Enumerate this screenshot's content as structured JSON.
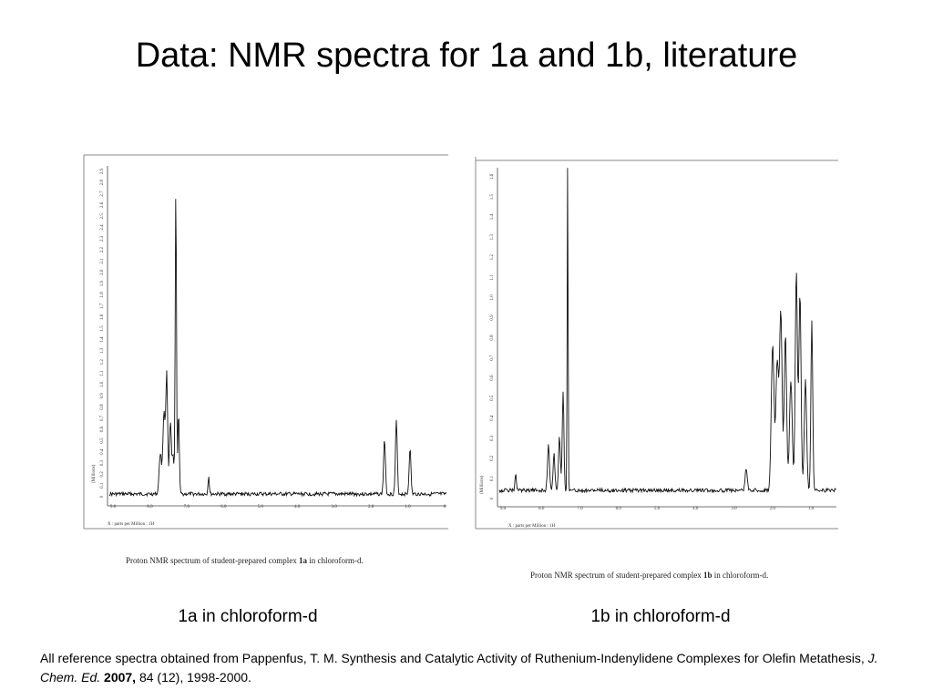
{
  "slide": {
    "title": "Data: NMR spectra for 1a and 1b, literature"
  },
  "spectra": [
    {
      "id": "1a",
      "figure_caption_prefix": "Proton NMR spectrum of student-prepared complex ",
      "figure_caption_compound": "1a",
      "figure_caption_suffix": " in chloroform-d.",
      "x_axis_title": "X : parts per Million : 1H",
      "y_axis_title": "(Millions)",
      "x_ticks": [
        "9.0",
        "8.0",
        "7.0",
        "6.0",
        "5.0",
        "4.0",
        "3.0",
        "2.0",
        "1.0",
        "0"
      ],
      "y_ticks": [
        "0",
        "0.1",
        "0.2",
        "0.3",
        "0.4",
        "0.5",
        "0.6",
        "0.7",
        "0.8",
        "0.9",
        "1.0",
        "1.1",
        "1.2",
        "1.3",
        "1.4",
        "1.5",
        "1.6",
        "1.7",
        "1.8",
        "1.9",
        "2.0",
        "2.1",
        "2.2",
        "2.3",
        "2.4",
        "2.5",
        "2.6",
        "2.7",
        "2.8",
        "2.9"
      ],
      "sub_caption": "1a in chloroform-d"
    },
    {
      "id": "1b",
      "figure_caption_prefix": "Proton NMR spectrum of student-prepared complex ",
      "figure_caption_compound": "1b",
      "figure_caption_suffix": " in chloroform-d.",
      "x_axis_title": "X : parts per Million : 1H",
      "y_axis_title": "(Millions)",
      "x_ticks": [
        "9.0",
        "8.0",
        "7.0",
        "6.0",
        "5.0",
        "4.0",
        "3.0",
        "2.0",
        "1.0"
      ],
      "y_ticks": [
        "0",
        "0.1",
        "0.2",
        "0.3",
        "0.4",
        "0.5",
        "0.6",
        "0.7",
        "0.8",
        "0.9",
        "1.0",
        "1.1",
        "1.2",
        "1.3",
        "1.4",
        "1.5",
        "1.6"
      ],
      "sub_caption": "1b in chloroform-d"
    }
  ],
  "citation": {
    "line_prefix": "All reference spectra obtained from Pappenfus, T. M. Synthesis and Catalytic Activity of Ruthenium-Indenylidene Complexes for Olefin Metathesis, ",
    "journal": "J. Chem. Ed.",
    "year": "2007,",
    "rest": " 84 (12), 1998-2000."
  }
}
